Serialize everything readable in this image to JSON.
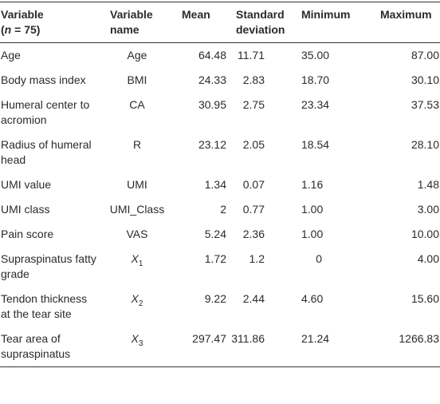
{
  "table": {
    "header": [
      [
        "Variable",
        "(",
        "n",
        " = 75)"
      ],
      "Variable name",
      "Mean",
      "Standard deviation",
      "Minimum",
      "Maximum"
    ],
    "rows": [
      [
        "Age",
        "Age",
        "64.48",
        "11.71",
        "35.00",
        "87.00"
      ],
      [
        "Body mass index",
        "BMI",
        "24.33",
        "2.83",
        "18.70",
        "30.10"
      ],
      [
        "Humeral center to acromion",
        "CA",
        "30.95",
        "2.75",
        "23.34",
        "37.53"
      ],
      [
        "Radius of humeral head",
        "R",
        "23.12",
        "2.05",
        "18.54",
        "28.10"
      ],
      [
        "UMI value",
        "UMI",
        "1.34",
        "0.07",
        "1.16",
        "1.48"
      ],
      [
        "UMI class",
        "UMI_Class",
        "2",
        "0.77",
        "1.00",
        "3.00"
      ],
      [
        "Pain score",
        "VAS",
        "5.24",
        "2.36",
        "1.00",
        "10.00"
      ],
      [
        "Supraspinatus fatty grade",
        {
          "symbol": "X",
          "sub": "1"
        },
        "1.72",
        "1.2",
        "0",
        "4.00"
      ],
      [
        "Tendon thickness at the tear site",
        {
          "symbol": "X",
          "sub": "2"
        },
        "9.22",
        "2.44",
        "4.60",
        "15.60"
      ],
      [
        "Tear area of supraspinatus",
        {
          "symbol": "X",
          "sub": "3"
        },
        "297.47",
        "311.86",
        "21.24",
        "1266.83"
      ]
    ]
  }
}
